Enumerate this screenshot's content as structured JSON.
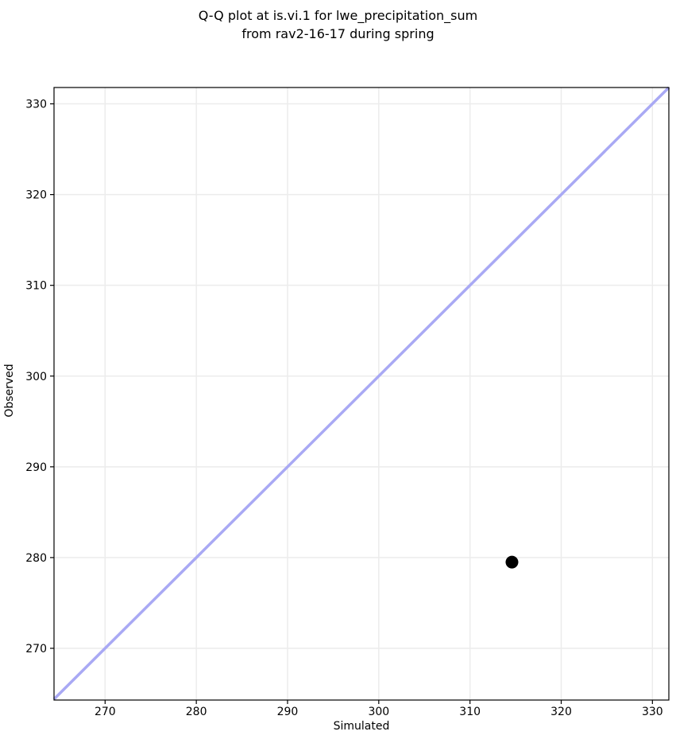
{
  "chart_data": {
    "type": "scatter",
    "title_lines": [
      "Q-Q plot at is.vi.1 for lwe_precipitation_sum",
      "from rav2-16-17 during spring"
    ],
    "xlabel": "Simulated",
    "ylabel": "Observed",
    "xlim": [
      264.4,
      331.8
    ],
    "ylim": [
      264.3,
      331.8
    ],
    "xticks": [
      270,
      280,
      290,
      300,
      310,
      320,
      330
    ],
    "yticks": [
      270,
      280,
      290,
      300,
      310,
      320,
      330
    ],
    "grid": true,
    "legend": null,
    "points": [
      {
        "x": 314.6,
        "y": 279.5
      }
    ],
    "identity_line": {
      "x1": 264.4,
      "y1": 264.4,
      "x2": 331.8,
      "y2": 331.8
    },
    "colors": {
      "identity_line": "#a9a9f4",
      "point": "#000000",
      "grid": "#ececec",
      "spine": "#000000",
      "text": "#000000"
    }
  }
}
